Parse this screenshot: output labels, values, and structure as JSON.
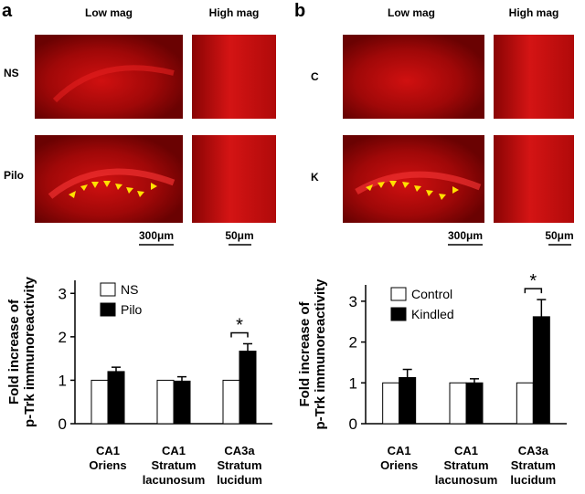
{
  "panels": [
    {
      "label": "a",
      "columns": [
        "Low mag",
        "High mag"
      ],
      "rows": [
        "NS",
        "Pilo"
      ],
      "scale_bars": [
        "300μm",
        "50μm"
      ]
    },
    {
      "label": "b",
      "columns": [
        "Low mag",
        "High mag"
      ],
      "rows": [
        "C",
        "K"
      ],
      "scale_bars": [
        "300μm",
        "50μm"
      ]
    }
  ],
  "chart_data": [
    {
      "type": "bar",
      "ylabel": [
        "Fold increase of",
        "p-Trk immunoreactivity"
      ],
      "categories": [
        [
          "CA1",
          "Oriens"
        ],
        [
          "CA1",
          "Stratum",
          "lacunosum"
        ],
        [
          "CA3a",
          "Stratum",
          "lucidum"
        ]
      ],
      "series": [
        {
          "name": "NS",
          "color": "#ffffff",
          "values": [
            1,
            1,
            1
          ]
        },
        {
          "name": "Pilo",
          "color": "#000000",
          "values": [
            1.2,
            0.98,
            1.67
          ],
          "errors": [
            0.1,
            0.1,
            0.17
          ]
        }
      ],
      "annotation": "*",
      "ylim": [
        0,
        3.3
      ],
      "yticks": [
        0,
        1,
        2,
        3
      ],
      "legend": "top-left"
    },
    {
      "type": "bar",
      "ylabel": [
        "Fold increase of",
        "p-Trk immunoreactivity"
      ],
      "categories": [
        [
          "CA1",
          "Oriens"
        ],
        [
          "CA1",
          "Stratum",
          "lacunosum"
        ],
        [
          "CA3a",
          "Stratum",
          "lucidum"
        ]
      ],
      "series": [
        {
          "name": "Control",
          "color": "#ffffff",
          "values": [
            1,
            1,
            1
          ]
        },
        {
          "name": "Kindled",
          "color": "#000000",
          "values": [
            1.13,
            1.0,
            2.62
          ],
          "errors": [
            0.2,
            0.1,
            0.42
          ]
        }
      ],
      "annotation": "*",
      "ylim": [
        0,
        3.4
      ],
      "yticks": [
        0,
        1,
        2,
        3
      ],
      "legend": "top-left"
    }
  ]
}
